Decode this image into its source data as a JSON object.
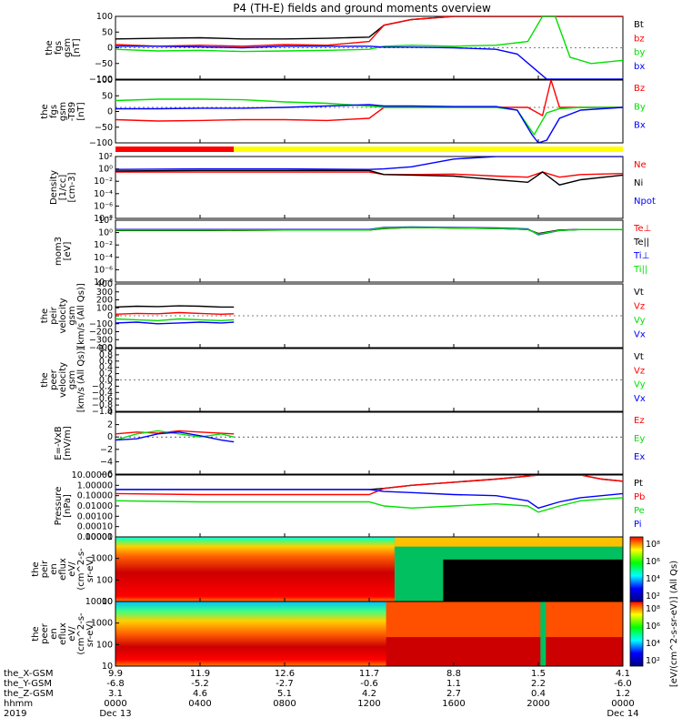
{
  "title": "P4 (TH-E) fields and ground moments overview",
  "colors": {
    "black": "#000000",
    "red": "#ff0000",
    "green": "#00e000",
    "blue": "#0000ff",
    "yellow": "#ffff00",
    "magenta": "#ff00ff"
  },
  "time_axis": {
    "tick_hhmm": [
      "0000",
      "0400",
      "0800",
      "1200",
      "1600",
      "2000",
      "0000"
    ],
    "dates": [
      "Dec 13",
      "Dec 14"
    ],
    "year": "2019",
    "rows": [
      {
        "label": "the_X-GSM",
        "values": [
          "9.9",
          "11.9",
          "12.6",
          "11.7",
          "8.8",
          "1.5",
          "4.1"
        ]
      },
      {
        "label": "the_Y-GSM",
        "values": [
          "-6.8",
          "-5.2",
          "-2.7",
          "-0.6",
          "1.1",
          "2.2",
          "-6.0"
        ]
      },
      {
        "label": "the_Z-GSM",
        "values": [
          "3.1",
          "4.6",
          "5.1",
          "4.2",
          "2.7",
          "0.4",
          "1.2"
        ]
      },
      {
        "label": "hhmm",
        "values": [
          "0000",
          "0400",
          "0800",
          "1200",
          "1600",
          "2000",
          "0000"
        ]
      },
      {
        "label": "2019",
        "values": [
          "Dec 13",
          "",
          "",
          "",
          "",
          "",
          "Dec 14"
        ]
      }
    ]
  },
  "chart_data": [
    {
      "type": "line",
      "ylabel": [
        "the",
        "fgs",
        "gsm",
        "[nT]"
      ],
      "ylim": [
        -100,
        100
      ],
      "yticks": [
        "100",
        "50",
        "0",
        "−50",
        "−100"
      ],
      "series": [
        {
          "name": "Bt",
          "color": "black",
          "x": [
            0,
            2,
            4,
            6,
            8,
            10,
            12,
            12.7,
            14,
            16,
            18,
            19.5,
            20.5,
            21.5,
            22.5,
            24
          ],
          "y": [
            28,
            30,
            32,
            28,
            28,
            30,
            34,
            72,
            90,
            100,
            100,
            100,
            100,
            100,
            100,
            100
          ]
        },
        {
          "name": "bz",
          "color": "red",
          "x": [
            0,
            2,
            4,
            6,
            8,
            10,
            12,
            12.7,
            14,
            16,
            18,
            20,
            24
          ],
          "y": [
            10,
            5,
            8,
            5,
            10,
            8,
            20,
            72,
            90,
            100,
            100,
            100,
            100
          ]
        },
        {
          "name": "by",
          "color": "green",
          "x": [
            0,
            2,
            4,
            6,
            8,
            10,
            12,
            12.7,
            14,
            16,
            18,
            19.5,
            20.2,
            20.8,
            21.5,
            22.5,
            24
          ],
          "y": [
            -5,
            -10,
            -8,
            -12,
            -10,
            -8,
            -5,
            5,
            8,
            5,
            8,
            20,
            100,
            100,
            -30,
            -50,
            -40
          ]
        },
        {
          "name": "bx",
          "color": "blue",
          "x": [
            0,
            2,
            4,
            6,
            8,
            10,
            12,
            12.7,
            14,
            16,
            18,
            19,
            19.7,
            20.4,
            21,
            22,
            23,
            24
          ],
          "y": [
            5,
            5,
            3,
            0,
            5,
            5,
            5,
            2,
            2,
            0,
            -5,
            -20,
            -60,
            -100,
            -100,
            -100,
            -100,
            -100
          ]
        }
      ]
    },
    {
      "type": "line",
      "ylabel": [
        "the",
        "fgs",
        "gsm",
        "-T89",
        "[nT]"
      ],
      "ylim": [
        -130,
        100
      ],
      "yticks": [
        "100",
        "50",
        "0",
        "−50",
        "−100"
      ],
      "series": [
        {
          "name": "Bz",
          "color": "red",
          "x": [
            0,
            2,
            4,
            6,
            8,
            10,
            12,
            12.7,
            14,
            16,
            18,
            19.5,
            20.2,
            20.6,
            21,
            22,
            24
          ],
          "y": [
            -45,
            -50,
            -48,
            -45,
            -45,
            -48,
            -40,
            0,
            0,
            0,
            0,
            0,
            -30,
            100,
            0,
            0,
            0
          ]
        },
        {
          "name": "By",
          "color": "green",
          "x": [
            0,
            2,
            4,
            6,
            8,
            10,
            12,
            12.7,
            14,
            16,
            18,
            19,
            19.8,
            20.4,
            21,
            22,
            24
          ],
          "y": [
            25,
            30,
            30,
            28,
            20,
            15,
            5,
            0,
            0,
            0,
            0,
            -10,
            -100,
            -20,
            -5,
            0,
            0
          ]
        },
        {
          "name": "Bx",
          "color": "blue",
          "x": [
            0,
            2,
            4,
            6,
            8,
            10,
            12,
            12.7,
            14,
            16,
            18,
            19,
            19.7,
            20,
            20.4,
            21,
            22,
            24
          ],
          "y": [
            -5,
            -5,
            -3,
            -3,
            0,
            5,
            10,
            5,
            5,
            3,
            3,
            -10,
            -100,
            -130,
            -120,
            -40,
            -10,
            0
          ]
        }
      ]
    },
    {
      "type": "line",
      "ylabel": [
        "Density",
        "[1/cc]",
        "[cm-3]"
      ],
      "ylim": [
        -9,
        3
      ],
      "yscale": "log",
      "yticks": [
        "10²",
        "10⁰",
        "10⁻²",
        "10⁻⁴",
        "10⁻⁶",
        "10⁻⁸"
      ],
      "flag_bar": {
        "red_until_hour": 5.6,
        "yellow_from_hour": 5.6
      },
      "series": [
        {
          "name": "Ne",
          "color": "red",
          "x": [
            0,
            4,
            8,
            12,
            12.7,
            14,
            16,
            18,
            19.5,
            20.2,
            21,
            22,
            24
          ],
          "y": [
            0,
            0,
            0,
            0,
            -0.5,
            -0.5,
            -0.4,
            -0.8,
            -1.0,
            0,
            -1.0,
            -0.5,
            -0.3
          ]
        },
        {
          "name": "Ni",
          "color": "black",
          "x": [
            0,
            4,
            8,
            12,
            12.7,
            14,
            16,
            18,
            19.5,
            20.2,
            21,
            22,
            24
          ],
          "y": [
            0.2,
            0.3,
            0.3,
            0.3,
            -0.5,
            -0.6,
            -0.8,
            -1.5,
            -2.0,
            0,
            -2.5,
            -1.5,
            -0.6
          ]
        },
        {
          "name": "Npot",
          "color": "blue",
          "x": [
            0,
            4,
            8,
            12,
            12.7,
            14,
            16,
            18,
            20,
            24
          ],
          "y": [
            0.5,
            0.6,
            0.6,
            0.5,
            0.6,
            1.0,
            2.5,
            3,
            3,
            3
          ]
        }
      ],
      "legend_extra": []
    },
    {
      "type": "line",
      "ylabel": [
        "mom3",
        "[eV]"
      ],
      "ylim": [
        -9,
        3
      ],
      "yscale": "log",
      "yticks": [
        "10²",
        "10⁰",
        "10⁻²",
        "10⁻⁴",
        "10⁻⁶",
        "10⁻⁸"
      ],
      "series": [
        {
          "name": "Te⊥",
          "color": "red",
          "x": [
            0,
            4,
            8,
            12,
            12.7,
            14,
            16,
            18,
            19.5,
            20,
            21,
            22,
            24
          ],
          "y": [
            1.0,
            1.0,
            1.1,
            1.1,
            1.4,
            1.6,
            1.5,
            1.4,
            1.2,
            0.4,
            1.1,
            1.2,
            1.2
          ]
        },
        {
          "name": "Te||",
          "color": "black",
          "x": [
            0,
            4,
            8,
            12,
            12.7,
            14,
            16,
            18,
            19.5,
            20,
            21,
            22,
            24
          ],
          "y": [
            1.0,
            1.0,
            1.1,
            1.1,
            1.4,
            1.6,
            1.5,
            1.4,
            1.2,
            0.4,
            1.1,
            1.2,
            1.2
          ]
        },
        {
          "name": "Ti⊥",
          "color": "blue",
          "x": [
            0,
            4,
            8,
            12,
            12.7,
            14,
            16,
            18,
            19.5,
            20,
            21,
            22,
            24
          ],
          "y": [
            1.2,
            1.2,
            1.2,
            1.2,
            1.6,
            1.7,
            1.6,
            1.5,
            1.3,
            0.2,
            1.0,
            1.2,
            1.2
          ]
        },
        {
          "name": "Ti||",
          "color": "green",
          "x": [
            0,
            4,
            8,
            12,
            12.7,
            14,
            16,
            18,
            19.5,
            20,
            21,
            22,
            24
          ],
          "y": [
            1.1,
            1.1,
            1.1,
            1.1,
            1.5,
            1.6,
            1.5,
            1.4,
            1.2,
            0.3,
            1.0,
            1.2,
            1.2
          ]
        }
      ]
    },
    {
      "type": "line",
      "ylabel": [
        "the",
        "peir",
        "velocity",
        "gsm",
        "[km/s (All Qs)]"
      ],
      "ylim": [
        -400,
        400
      ],
      "yticks": [
        "400",
        "300",
        "200",
        "100",
        "0",
        "−100",
        "−200",
        "−300",
        "−400"
      ],
      "series": [
        {
          "name": "Vt",
          "color": "black",
          "x": [
            0,
            1,
            2,
            3,
            4,
            5,
            5.6
          ],
          "y": [
            110,
            120,
            115,
            125,
            120,
            110,
            110
          ]
        },
        {
          "name": "Vz",
          "color": "red",
          "x": [
            0,
            1,
            2,
            3,
            4,
            5,
            5.6
          ],
          "y": [
            20,
            30,
            25,
            40,
            30,
            20,
            25
          ]
        },
        {
          "name": "Vy",
          "color": "green",
          "x": [
            0,
            1,
            2,
            3,
            4,
            5,
            5.6
          ],
          "y": [
            -40,
            -50,
            -60,
            -40,
            -50,
            -60,
            -50
          ]
        },
        {
          "name": "Vx",
          "color": "blue",
          "x": [
            0,
            1,
            2,
            3,
            4,
            5,
            5.6
          ],
          "y": [
            -90,
            -80,
            -100,
            -90,
            -80,
            -90,
            -80
          ]
        }
      ]
    },
    {
      "type": "line",
      "ylabel": [
        "the",
        "peer",
        "velocity",
        "gsm",
        "[km/s (All Qs)]"
      ],
      "ylim": [
        -1.0,
        1.0
      ],
      "yticks": [
        "1.0",
        "0.8",
        "0.6",
        "0.4",
        "0.2",
        "0.0",
        "−0.2",
        "−0.4",
        "−0.6",
        "−0.8",
        "−1.0"
      ],
      "series": [
        {
          "name": "Vt",
          "color": "black",
          "x": [],
          "y": []
        },
        {
          "name": "Vz",
          "color": "red",
          "x": [],
          "y": []
        },
        {
          "name": "Vy",
          "color": "green",
          "x": [],
          "y": []
        },
        {
          "name": "Vx",
          "color": "blue",
          "x": [],
          "y": []
        }
      ]
    },
    {
      "type": "line",
      "ylabel": [
        "E=-VxB",
        "[mV/m]"
      ],
      "ylim": [
        -6,
        4
      ],
      "yticks": [
        "4",
        "2",
        "0",
        "−2",
        "−4",
        "−6"
      ],
      "series": [
        {
          "name": "Ez",
          "color": "red",
          "x": [
            0,
            1,
            2,
            3,
            4,
            5,
            5.6
          ],
          "y": [
            0.5,
            0.8,
            0.6,
            1.0,
            0.8,
            0.6,
            0.5
          ]
        },
        {
          "name": "Ey",
          "color": "green",
          "x": [
            0,
            1,
            2,
            3,
            4,
            5,
            5.6
          ],
          "y": [
            -0.5,
            0.5,
            1.0,
            0.5,
            0.0,
            0.5,
            0.0
          ]
        },
        {
          "name": "Ex",
          "color": "blue",
          "x": [
            0,
            1,
            2,
            3,
            4,
            5,
            5.6
          ],
          "y": [
            -0.5,
            -0.3,
            0.5,
            0.8,
            0.2,
            -0.5,
            -0.8
          ]
        }
      ]
    },
    {
      "type": "line",
      "ylabel": [
        "Pressure",
        "[nPa]"
      ],
      "ylim": [
        -5,
        1
      ],
      "yscale": "log",
      "yticks": [
        "10.00000",
        "1.00000",
        "0.10000",
        "0.01000",
        "0.00100",
        "0.00010",
        "0.00001"
      ],
      "series": [
        {
          "name": "Pt",
          "color": "black",
          "x": [
            0,
            4,
            8,
            12,
            12.7,
            14,
            16,
            18,
            19,
            20,
            21,
            22,
            23,
            24
          ],
          "y": [
            -0.4,
            -0.4,
            -0.4,
            -0.4,
            -0.3,
            0,
            0.3,
            0.6,
            0.8,
            1,
            1,
            1,
            0.6,
            0.4
          ]
        },
        {
          "name": "Pb",
          "color": "red",
          "x": [
            0,
            4,
            8,
            12,
            12.7,
            14,
            16,
            18,
            19,
            20,
            21,
            22,
            23,
            24
          ],
          "y": [
            -0.8,
            -0.9,
            -0.9,
            -0.9,
            -0.3,
            0,
            0.3,
            0.6,
            0.8,
            1,
            1,
            1,
            0.6,
            0.4
          ]
        },
        {
          "name": "Pe",
          "color": "green",
          "x": [
            0,
            4,
            8,
            12,
            12.7,
            14,
            16,
            18,
            19.5,
            20,
            21,
            22,
            24
          ],
          "y": [
            -1.5,
            -1.6,
            -1.6,
            -1.6,
            -2.0,
            -2.2,
            -2.0,
            -1.8,
            -2.0,
            -2.6,
            -2.0,
            -1.5,
            -1.2
          ]
        },
        {
          "name": "Pi",
          "color": "blue",
          "x": [
            0,
            4,
            8,
            12,
            12.7,
            14,
            16,
            18,
            19.5,
            20,
            21,
            22,
            24
          ],
          "y": [
            -0.4,
            -0.4,
            -0.4,
            -0.4,
            -0.6,
            -0.7,
            -0.9,
            -1.0,
            -1.5,
            -2.2,
            -1.6,
            -1.2,
            -0.8
          ]
        }
      ]
    },
    {
      "type": "heatmap",
      "ylabel": [
        "the",
        "peir",
        "en",
        "eflux",
        "eV/",
        "(cm^2-s-",
        "sr-eV)"
      ],
      "ylim": [
        1,
        4.3
      ],
      "yscale": "log",
      "yticks": [
        "10000",
        "1000",
        "100",
        "10"
      ],
      "colorbar_ticks": [
        "10⁸",
        "10⁶",
        "10⁴",
        "10²"
      ],
      "colorbar_label": "[eV/(cm^2-s-sr-eV)] (All Qs)"
    },
    {
      "type": "heatmap",
      "ylabel": [
        "the",
        "peer",
        "en",
        "eflux",
        "eV/",
        "(cm^2-s-",
        "sr-eV)"
      ],
      "ylim": [
        1,
        4.3
      ],
      "yscale": "log",
      "yticks": [
        "10000",
        "1000",
        "100",
        "10"
      ],
      "colorbar_ticks": [
        "10⁸",
        "10⁶",
        "10⁴",
        "10²"
      ]
    }
  ]
}
